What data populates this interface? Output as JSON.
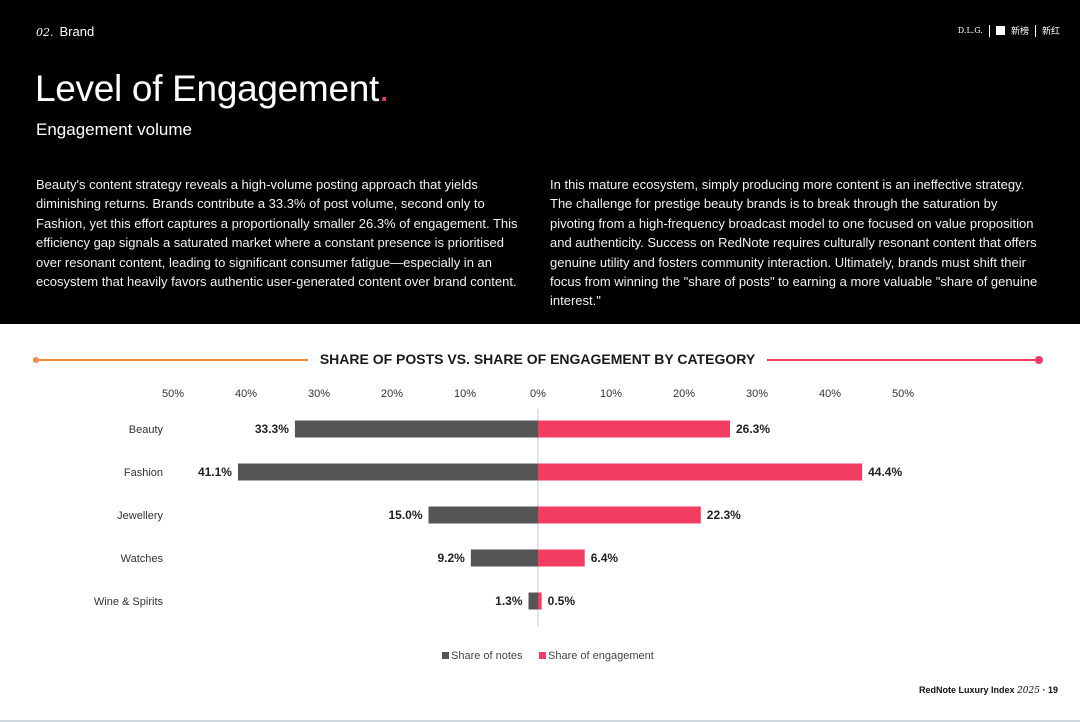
{
  "header": {
    "section_number": "02.",
    "section_label": "Brand",
    "logo_text": "D.L.G.",
    "logo_brand_1": "新榜",
    "logo_brand_2": "新红"
  },
  "page_title": "Level of Engagement",
  "page_title_dot": ".",
  "subtitle": "Engagement volume",
  "paragraphs": {
    "left": "Beauty's content strategy reveals a high-volume posting approach that yields diminishing returns. Brands contribute a 33.3% of post volume, second only to Fashion, yet this effort captures a proportionally smaller 26.3% of engagement. This efficiency gap signals a saturated market where a constant presence is prioritised over resonant content, leading to significant consumer fatigue—especially in an ecosystem that heavily favors authentic user-generated content over brand content.",
    "right": "In this mature ecosystem, simply producing more content is an ineffective strategy. The challenge for prestige beauty brands is to break through the saturation by pivoting from a high-frequency broadcast model to one focused on value proposition and authenticity. Success on RedNote requires culturally resonant content that offers genuine utility and fosters community interaction. Ultimately, brands must shift their focus from winning the \"share of posts\" to earning a more valuable \"share of genuine interest.\""
  },
  "colors": {
    "notes": "#555555",
    "engagement": "#f23d63",
    "accent_orange": "#f08a3c"
  },
  "chart_data": {
    "type": "bar",
    "orientation": "horizontal-diverging",
    "title": "SHARE OF POSTS VS. SHARE OF ENGAGEMENT BY CATEGORY",
    "categories": [
      "Beauty",
      "Fashion",
      "Jewellery",
      "Watches",
      "Wine & Spirits"
    ],
    "series": [
      {
        "name": "Share of notes",
        "values": [
          33.3,
          41.1,
          15.0,
          9.2,
          1.3
        ],
        "labels": [
          "33.3%",
          "41.1%",
          "15.0%",
          "9.2%",
          "1.3%"
        ],
        "side": "left"
      },
      {
        "name": "Share of engagement",
        "values": [
          26.3,
          44.4,
          22.3,
          6.4,
          0.5
        ],
        "labels": [
          "26.3%",
          "44.4%",
          "22.3%",
          "6.4%",
          "0.5%"
        ],
        "side": "right"
      }
    ],
    "xlim": [
      -50,
      50
    ],
    "x_ticks": [
      -50,
      -40,
      -30,
      -20,
      -10,
      0,
      10,
      20,
      30,
      40,
      50
    ],
    "x_tick_labels": [
      "50%",
      "40%",
      "30%",
      "20%",
      "10%",
      "0%",
      "10%",
      "20%",
      "30%",
      "40%",
      "50%"
    ],
    "legend_position": "bottom",
    "grid": false
  },
  "footer": {
    "label": "RedNote Luxury Index",
    "year": "2025",
    "page": "· 19"
  }
}
